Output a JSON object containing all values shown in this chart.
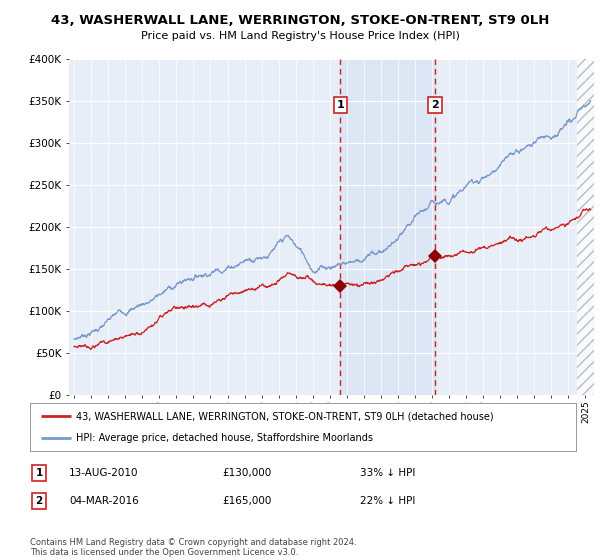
{
  "title": "43, WASHERWALL LANE, WERRINGTON, STOKE-ON-TRENT, ST9 0LH",
  "subtitle": "Price paid vs. HM Land Registry's House Price Index (HPI)",
  "ylim": [
    0,
    400000
  ],
  "xlim_start": 1994.7,
  "xlim_end": 2025.5,
  "sale1_date": 2010.617,
  "sale1_price": 130000,
  "sale1_label": "1",
  "sale1_text": "13-AUG-2010",
  "sale1_amount": "£130,000",
  "sale1_hpi": "33% ↓ HPI",
  "sale2_date": 2016.167,
  "sale2_price": 165000,
  "sale2_label": "2",
  "sale2_text": "04-MAR-2016",
  "sale2_amount": "£165,000",
  "sale2_hpi": "22% ↓ HPI",
  "red_line_color": "#cc2222",
  "blue_line_color": "#7799cc",
  "background_color": "#ffffff",
  "plot_bg_color": "#e8eef8",
  "grid_color": "#ffffff",
  "legend_line1": "43, WASHERWALL LANE, WERRINGTON, STOKE-ON-TRENT, ST9 0LH (detached house)",
  "legend_line2": "HPI: Average price, detached house, Staffordshire Moorlands",
  "footer": "Contains HM Land Registry data © Crown copyright and database right 2024.\nThis data is licensed under the Open Government Licence v3.0."
}
